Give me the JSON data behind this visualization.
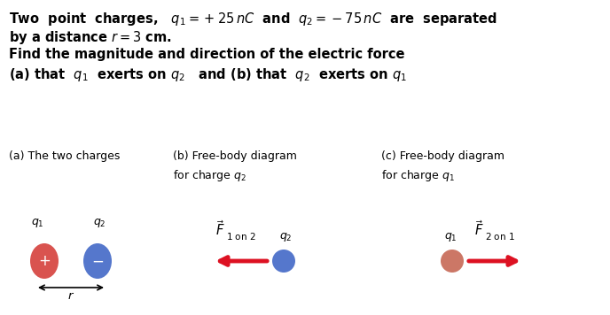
{
  "bg_color": "#ffffff",
  "text_color": "#000000",
  "red_color": "#d9534f",
  "red_light": "#cc7766",
  "blue_color": "#5577cc",
  "arrow_red": "#dd1122",
  "fig_width": 6.88,
  "fig_height": 3.56,
  "dpi": 100,
  "line1": "Two  point  charges,   $q_1 =+25\\,nC$  and  $q_2 = -75\\,nC$  are  separated",
  "line2": "by a distance $r = 3$ cm.",
  "line3": "Find the magnitude and direction of the electric force",
  "line4": "(a) that  $q_1$  exerts on $q_2$   and (b) that  $q_2$  exerts on $q_1$",
  "sec_a": "(a) The two charges",
  "sec_b": "(b) Free-body diagram\nfor charge $q_2$",
  "sec_c": "(c) Free-body diagram\nfor charge $q_1$",
  "text_fontsize": 10.5,
  "label_fontsize": 9.0,
  "sub_fontsize": 9.5,
  "marker_fontsize": 9.0
}
